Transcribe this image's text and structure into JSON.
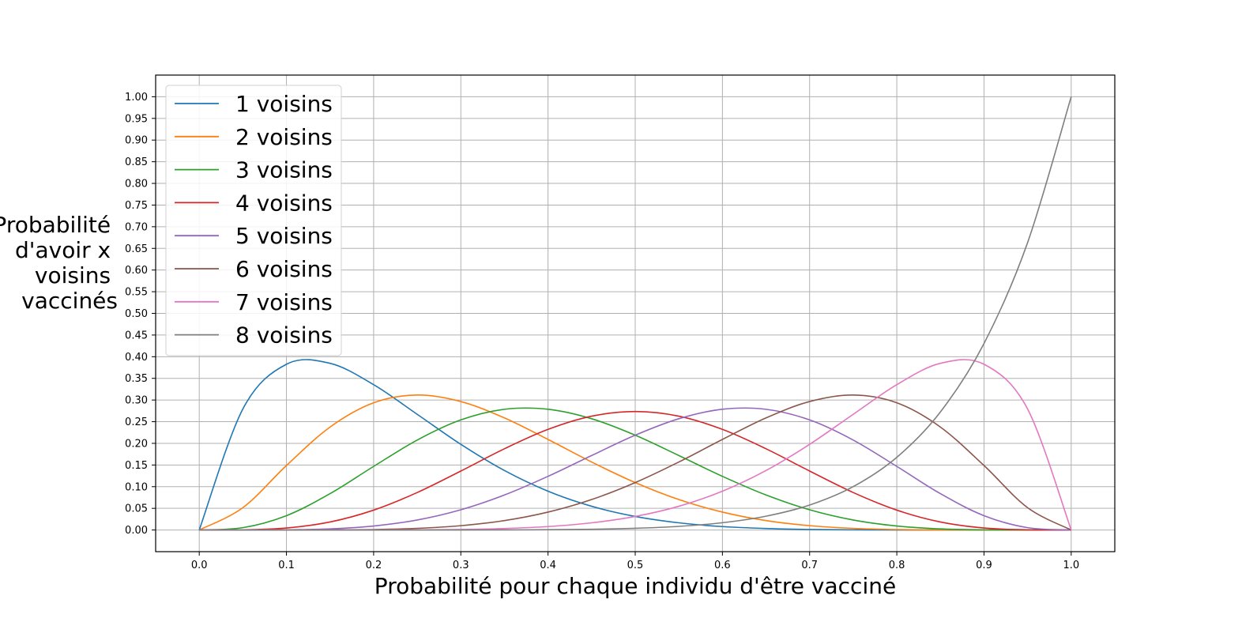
{
  "chart_data": {
    "type": "line",
    "title": "",
    "xlabel": "Probabilité pour chaque individu d'être vacciné",
    "ylabel_lines": [
      "Probabilité",
      "d'avoir x",
      "voisins",
      "vaccinés"
    ],
    "xlim": [
      -0.05,
      1.05
    ],
    "ylim": [
      -0.05,
      1.05
    ],
    "x_ticks": [
      0.0,
      0.1,
      0.2,
      0.3,
      0.4,
      0.5,
      0.6,
      0.7,
      0.8,
      0.9,
      1.0
    ],
    "x_tick_labels": [
      "0.0",
      "0.1",
      "0.2",
      "0.3",
      "0.4",
      "0.5",
      "0.6",
      "0.7",
      "0.8",
      "0.9",
      "1.0"
    ],
    "y_ticks": [
      0.0,
      0.05,
      0.1,
      0.15,
      0.2,
      0.25,
      0.3,
      0.35,
      0.4,
      0.45,
      0.5,
      0.55,
      0.6,
      0.65,
      0.7,
      0.75,
      0.8,
      0.85,
      0.9,
      0.95,
      1.0
    ],
    "y_tick_labels": [
      "0.00",
      "0.05",
      "0.10",
      "0.15",
      "0.20",
      "0.25",
      "0.30",
      "0.35",
      "0.40",
      "0.45",
      "0.50",
      "0.55",
      "0.60",
      "0.65",
      "0.70",
      "0.75",
      "0.80",
      "0.85",
      "0.90",
      "0.95",
      "1.00"
    ],
    "grid": true,
    "legend_position": "top-left",
    "x": [
      0.0,
      0.05,
      0.1,
      0.15,
      0.2,
      0.25,
      0.3,
      0.35,
      0.4,
      0.45,
      0.5,
      0.55,
      0.6,
      0.65,
      0.7,
      0.75,
      0.8,
      0.85,
      0.9,
      0.95,
      1.0
    ],
    "series": [
      {
        "name": "1 voisins",
        "color": "#1f77b4",
        "values": [
          0.0,
          0.2793,
          0.3826,
          0.3847,
          0.3355,
          0.267,
          0.1977,
          0.1373,
          0.0896,
          0.0548,
          0.0313,
          0.0166,
          0.0079,
          0.0034,
          0.0012,
          0.0004,
          0.0001,
          0.0,
          0.0,
          0.0,
          0.0
        ]
      },
      {
        "name": "2 voisins",
        "color": "#ff7f0e",
        "values": [
          0.0,
          0.0515,
          0.1488,
          0.2376,
          0.2936,
          0.3115,
          0.2965,
          0.2587,
          0.209,
          0.1569,
          0.1094,
          0.0703,
          0.0413,
          0.0217,
          0.01,
          0.0038,
          0.0011,
          0.0002,
          0.0,
          0.0,
          0.0
        ]
      },
      {
        "name": "3 voisins",
        "color": "#2ca02c",
        "values": [
          0.0,
          0.0054,
          0.0331,
          0.0839,
          0.1468,
          0.2076,
          0.2541,
          0.2786,
          0.2787,
          0.2568,
          0.2188,
          0.1719,
          0.1239,
          0.0808,
          0.0467,
          0.0231,
          0.0092,
          0.0026,
          0.0004,
          0.0,
          0.0
        ]
      },
      {
        "name": "4 voisins",
        "color": "#d62728",
        "values": [
          0.0,
          0.0004,
          0.0046,
          0.0185,
          0.0459,
          0.0865,
          0.1361,
          0.1875,
          0.2322,
          0.2627,
          0.2734,
          0.2627,
          0.2322,
          0.1875,
          0.1361,
          0.0865,
          0.0459,
          0.0185,
          0.0046,
          0.0004,
          0.0
        ]
      },
      {
        "name": "5 voisins",
        "color": "#9467bd",
        "values": [
          0.0,
          0.0,
          0.0004,
          0.0026,
          0.0092,
          0.0231,
          0.0467,
          0.0808,
          0.1239,
          0.1719,
          0.2188,
          0.2568,
          0.2787,
          0.2786,
          0.2541,
          0.2076,
          0.1468,
          0.0839,
          0.0331,
          0.0054,
          0.0
        ]
      },
      {
        "name": "6 voisins",
        "color": "#8c564b",
        "values": [
          0.0,
          0.0,
          0.0,
          0.0002,
          0.0011,
          0.0038,
          0.01,
          0.0217,
          0.0413,
          0.0703,
          0.1094,
          0.1569,
          0.209,
          0.2587,
          0.2965,
          0.3115,
          0.2936,
          0.2376,
          0.1488,
          0.0515,
          0.0
        ]
      },
      {
        "name": "7 voisins",
        "color": "#e377c2",
        "values": [
          0.0,
          0.0,
          0.0,
          0.0,
          0.0001,
          0.0004,
          0.0012,
          0.0034,
          0.0079,
          0.0166,
          0.0313,
          0.0548,
          0.0896,
          0.1373,
          0.1977,
          0.267,
          0.3355,
          0.3847,
          0.3826,
          0.2793,
          0.0
        ]
      },
      {
        "name": "8 voisins",
        "color": "#7f7f7f",
        "values": [
          0.0,
          0.0,
          0.0,
          0.0,
          0.0,
          0.0,
          0.0001,
          0.0002,
          0.0007,
          0.0017,
          0.0039,
          0.0084,
          0.0168,
          0.0319,
          0.0576,
          0.1001,
          0.1678,
          0.2725,
          0.4305,
          0.6634,
          1.0
        ]
      }
    ]
  }
}
